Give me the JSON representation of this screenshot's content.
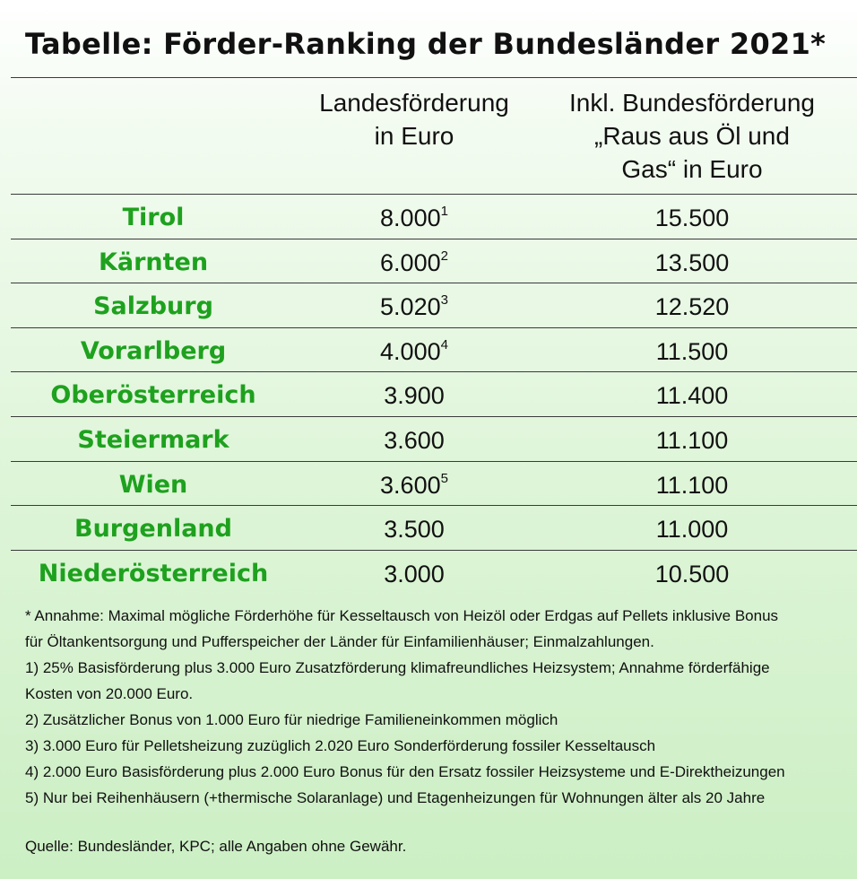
{
  "title": "Tabelle: Förder-Ranking der Bundesländer 2021*",
  "header": {
    "col2": [
      "Landesförderung",
      "in Euro"
    ],
    "col3": [
      "Inkl. Bundesförderung",
      "„Raus aus Öl und",
      "Gas“ in Euro"
    ]
  },
  "rows": [
    {
      "state": "Tirol",
      "landes": "8.000",
      "sup": "1",
      "gesamt": "15.500"
    },
    {
      "state": "Kärnten",
      "landes": "6.000",
      "sup": "2",
      "gesamt": "13.500"
    },
    {
      "state": "Salzburg",
      "landes": "5.020",
      "sup": "3",
      "gesamt": "12.520"
    },
    {
      "state": "Vorarlberg",
      "landes": "4.000",
      "sup": "4",
      "gesamt": "11.500"
    },
    {
      "state": "Oberösterreich",
      "landes": "3.900",
      "sup": "",
      "gesamt": "11.400"
    },
    {
      "state": "Steiermark",
      "landes": "3.600",
      "sup": "",
      "gesamt": "11.100"
    },
    {
      "state": "Wien",
      "landes": "3.600",
      "sup": "5",
      "gesamt": "11.100"
    },
    {
      "state": "Burgenland",
      "landes": "3.500",
      "sup": "",
      "gesamt": "11.000"
    },
    {
      "state": "Niederösterreich",
      "landes": "3.000",
      "sup": "",
      "gesamt": "10.500"
    }
  ],
  "notes": [
    "* Annahme: Maximal mögliche Förderhöhe für Kesseltausch von Heizöl oder Erdgas auf Pellets inklusive Bonus",
    "für Öltankentsorgung und Pufferspeicher der Länder für Einfamilienhäuser; Einmalzahlungen.",
    "1) 25% Basisförderung plus 3.000 Euro Zusatzförderung klimafreundliches Heizsystem; Annahme förderfähige",
    "Kosten von 20.000 Euro.",
    "2) Zusätzlicher Bonus von 1.000 Euro für niedrige Familieneinkommen möglich",
    "3) 3.000 Euro für Pelletsheizung zuzüglich 2.020 Euro Sonderförderung fossiler Kesseltausch",
    "4) 2.000 Euro Basisförderung plus 2.000 Euro Bonus für den Ersatz fossiler Heizsysteme und E-Direktheizungen",
    "5) Nur bei Reihenhäusern (+thermische Solaranlage) und Etagenheizungen für Wohnungen älter als 20 Jahre"
  ],
  "source": "Quelle: Bundesländer, KPC; alle Angaben ohne Gewähr.",
  "colors": {
    "state_green": "#1ea11e",
    "text": "#111111",
    "rule": "#3a3a3a"
  }
}
